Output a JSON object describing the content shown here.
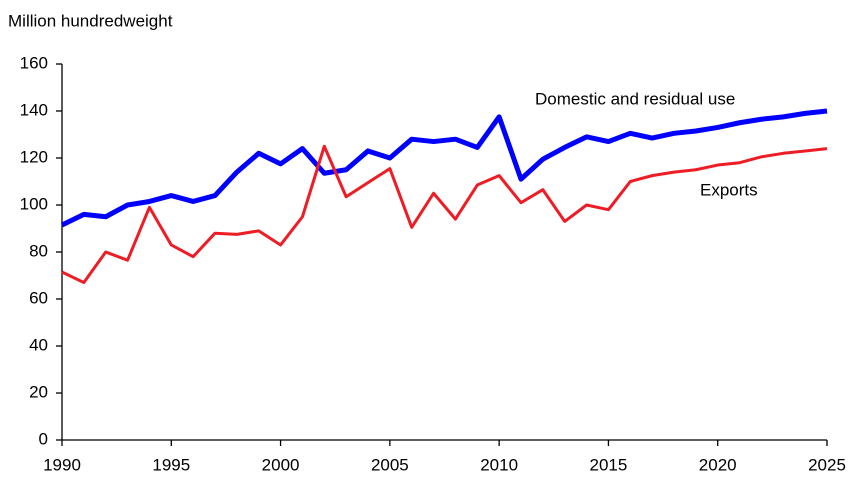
{
  "chart_data": {
    "type": "line",
    "y_axis_label": "Million hundredweight",
    "x": [
      1990,
      1991,
      1992,
      1993,
      1994,
      1995,
      1996,
      1997,
      1998,
      1999,
      2000,
      2001,
      2002,
      2003,
      2004,
      2005,
      2006,
      2007,
      2008,
      2009,
      2010,
      2011,
      2012,
      2013,
      2014,
      2015,
      2016,
      2017,
      2018,
      2019,
      2020,
      2021,
      2022,
      2023,
      2024,
      2025
    ],
    "series": [
      {
        "name": "Domestic and residual use",
        "color": "#0000ff",
        "values": [
          91.5,
          96,
          95,
          100,
          101.5,
          104,
          101.5,
          104,
          114,
          122,
          117.5,
          124,
          113.5,
          115,
          123,
          120,
          128,
          127,
          128,
          124.5,
          137.5,
          111,
          119.5,
          124.5,
          129,
          127,
          130.5,
          128.5,
          130.5,
          131.5,
          133,
          135,
          136.5,
          137.5,
          139,
          140
        ]
      },
      {
        "name": "Exports",
        "color": "#ee1c25",
        "values": [
          71.5,
          67,
          80,
          76.5,
          99,
          83,
          78,
          88,
          87.5,
          89,
          83,
          95,
          125,
          103.5,
          109.5,
          115.5,
          90.5,
          105,
          94,
          108.5,
          112.5,
          101,
          106.5,
          93,
          100,
          98,
          110,
          112.5,
          114,
          115,
          117,
          118,
          120.5,
          122,
          123,
          124
        ]
      }
    ],
    "xlim": [
      1990,
      2025
    ],
    "xticks": [
      1990,
      1995,
      2000,
      2005,
      2010,
      2015,
      2020,
      2025
    ],
    "ylim": [
      0,
      160
    ],
    "yticks": [
      0,
      20,
      40,
      60,
      80,
      100,
      120,
      140,
      160
    ],
    "grid": false
  }
}
